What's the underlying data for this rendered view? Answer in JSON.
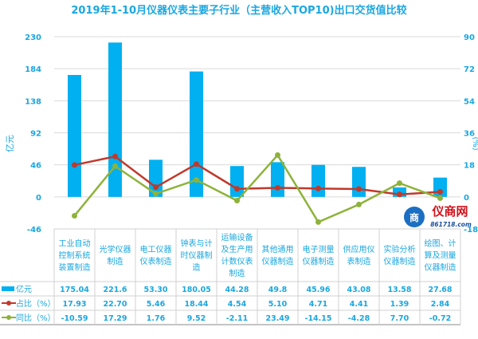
{
  "chart_data": {
    "type": "bar",
    "title": "2019年1-10月仪器仪表主要子行业（主营收入TOP10)出口交货值比较",
    "ylabel": "亿元",
    "y2label": "(%)",
    "ylim": [
      -46,
      230
    ],
    "yticks": [
      -46,
      0,
      46,
      92,
      138,
      184,
      230
    ],
    "y2lim": [
      -18,
      90
    ],
    "y2ticks": [
      -18,
      0,
      18,
      36,
      54,
      72,
      90
    ],
    "categories": [
      [
        "工业自动",
        "控制系统",
        "装置制造"
      ],
      [
        "光学仪器",
        "制造"
      ],
      [
        "电工仪器",
        "仪表制造"
      ],
      [
        "钟表与计",
        "时仪器制",
        "造"
      ],
      [
        "运输设备",
        "及生产用",
        "计数仪表",
        "制造"
      ],
      [
        "其他通用",
        "仪器制造"
      ],
      [
        "电子测量",
        "仪器制造"
      ],
      [
        "供应用仪",
        "表制造"
      ],
      [
        "实验分析",
        "仪器制造"
      ],
      [
        "绘图、计",
        "算及测量",
        "仪器制造"
      ]
    ],
    "series": [
      {
        "name": "亿元",
        "type": "bar",
        "axis": "left",
        "color": "#00b0f0",
        "values": [
          175.04,
          221.6,
          53.3,
          180.05,
          44.28,
          49.8,
          45.96,
          43.08,
          13.58,
          27.68
        ],
        "labels": [
          "175.04",
          "221.6",
          "53.30",
          "180.05",
          "44.28",
          "49.8",
          "45.96",
          "43.08",
          "13.58",
          "27.68"
        ]
      },
      {
        "name": "占比（%）",
        "type": "line",
        "axis": "right",
        "color": "#c0392b",
        "values": [
          17.93,
          22.7,
          5.46,
          18.44,
          4.54,
          5.1,
          4.71,
          4.41,
          1.39,
          2.84
        ],
        "labels": [
          "17.93",
          "22.70",
          "5.46",
          "18.44",
          "4.54",
          "5.10",
          "4.71",
          "4.41",
          "1.39",
          "2.84"
        ]
      },
      {
        "name": "同比（%）",
        "type": "line",
        "axis": "right",
        "color": "#8db33a",
        "values": [
          -10.59,
          17.29,
          1.76,
          9.52,
          -2.11,
          23.49,
          -14.15,
          -4.28,
          7.7,
          -0.72
        ],
        "labels": [
          "-10.59",
          "17.29",
          "1.76",
          "9.52",
          "-2.11",
          "23.49",
          "-14.15",
          "-4.28",
          "7.70",
          "-0.72"
        ]
      }
    ]
  },
  "logo": {
    "name": "仪商网",
    "url_text": "861718.com"
  }
}
